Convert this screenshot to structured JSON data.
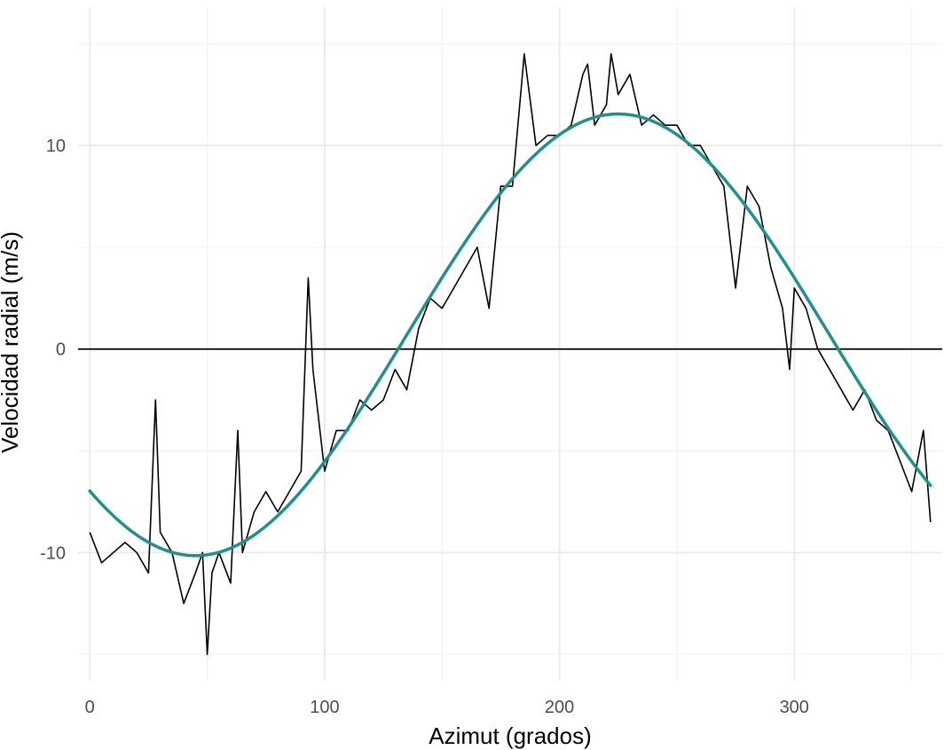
{
  "chart_data": {
    "type": "line",
    "title": "",
    "xlabel": "Azimut (grados)",
    "ylabel": "Velocidad radial (m/s)",
    "xlim": [
      -5,
      363
    ],
    "ylim": [
      -16.3,
      16.8
    ],
    "x_ticks": [
      0,
      100,
      200,
      300
    ],
    "y_ticks": [
      -10,
      0,
      10
    ],
    "x_tick_labels": [
      "0",
      "100",
      "200",
      "300"
    ],
    "y_tick_labels": [
      "-10",
      "0",
      "10"
    ],
    "grid": true,
    "reference_line_y": 0,
    "colors": {
      "observed": "#000000",
      "fit": "#21908C",
      "grid_major": "#ebebeb",
      "grid_minor": "#f3f3f3",
      "tick_text": "#4d4d4d"
    },
    "series": [
      {
        "kind": "observed",
        "x": [
          0,
          5,
          10,
          15,
          20,
          25,
          28,
          30,
          35,
          40,
          45,
          48,
          50,
          52,
          55,
          60,
          63,
          65,
          70,
          75,
          80,
          85,
          90,
          93,
          95,
          100,
          105,
          110,
          115,
          120,
          125,
          130,
          135,
          140,
          145,
          150,
          155,
          160,
          165,
          170,
          175,
          180,
          185,
          190,
          195,
          200,
          205,
          210,
          212,
          215,
          220,
          222,
          225,
          230,
          235,
          240,
          245,
          250,
          255,
          260,
          265,
          270,
          275,
          280,
          285,
          290,
          295,
          298,
          300,
          305,
          310,
          315,
          320,
          325,
          330,
          335,
          340,
          345,
          350,
          355,
          358
        ],
        "y": [
          -9,
          -10.5,
          -10,
          -9.5,
          -10,
          -11,
          -2.5,
          -9,
          -10,
          -12.5,
          -11,
          -10,
          -15,
          -11,
          -10,
          -11.5,
          -4,
          -10,
          -8,
          -7,
          -8,
          -7,
          -6,
          3.5,
          -1,
          -6,
          -4,
          -4,
          -2.5,
          -3,
          -2.5,
          -1,
          -2,
          1,
          2.5,
          2,
          3,
          4,
          5,
          2,
          8,
          8,
          14.5,
          10,
          10.5,
          10.5,
          11,
          13.5,
          14,
          11,
          12,
          14.5,
          12.5,
          13.5,
          11,
          11.5,
          11,
          11,
          10,
          10,
          9,
          8,
          3,
          8,
          7,
          4,
          2,
          -1,
          3,
          2,
          0,
          -1,
          -2,
          -3,
          -2,
          -3.5,
          -4,
          -5.5,
          -7,
          -4,
          -8.5
        ]
      },
      {
        "kind": "fit",
        "mean": 0.7,
        "amplitude": 10.85,
        "phase_deg": 225
      }
    ]
  }
}
